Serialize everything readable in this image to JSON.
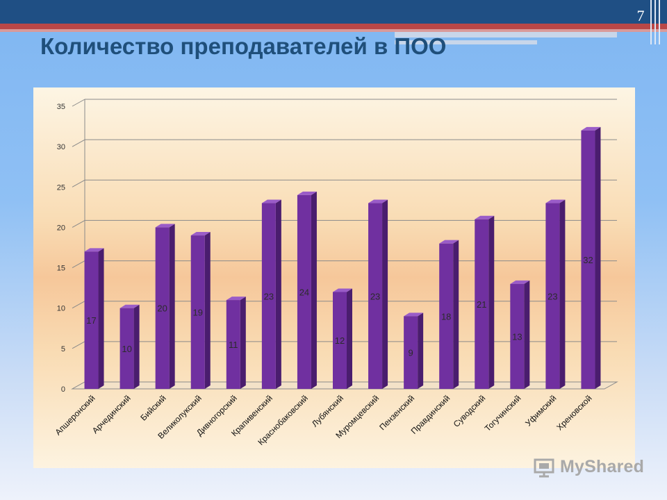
{
  "slide": {
    "number": "7",
    "title": "Количество преподавателей в ПОО"
  },
  "watermark": {
    "text": "MyShared"
  },
  "colors": {
    "bar_front": "#7030a0",
    "bar_side": "#4a1d6e",
    "bar_top": "#9a5cc8",
    "title": "#1f4f7a",
    "header": "#1f4f84"
  },
  "chart_data": {
    "type": "bar",
    "title": "",
    "xlabel": "",
    "ylabel": "",
    "ylim": [
      0,
      35
    ],
    "yticks": [
      0,
      5,
      10,
      15,
      20,
      25,
      30,
      35
    ],
    "grid": true,
    "legend": "none",
    "categories": [
      "Апшеронский",
      "Арчединский",
      "Бийский",
      "Великолукский",
      "Дивногорский",
      "Крапивенский",
      "Краснобаковский",
      "Лубянский",
      "Муромцевский",
      "Пензенский",
      "Правдинский",
      "Суводский",
      "Тогучинский",
      "Уфимский",
      "Хреновской"
    ],
    "values": [
      17,
      10,
      20,
      19,
      11,
      23,
      24,
      12,
      23,
      9,
      18,
      21,
      13,
      23,
      32
    ]
  }
}
